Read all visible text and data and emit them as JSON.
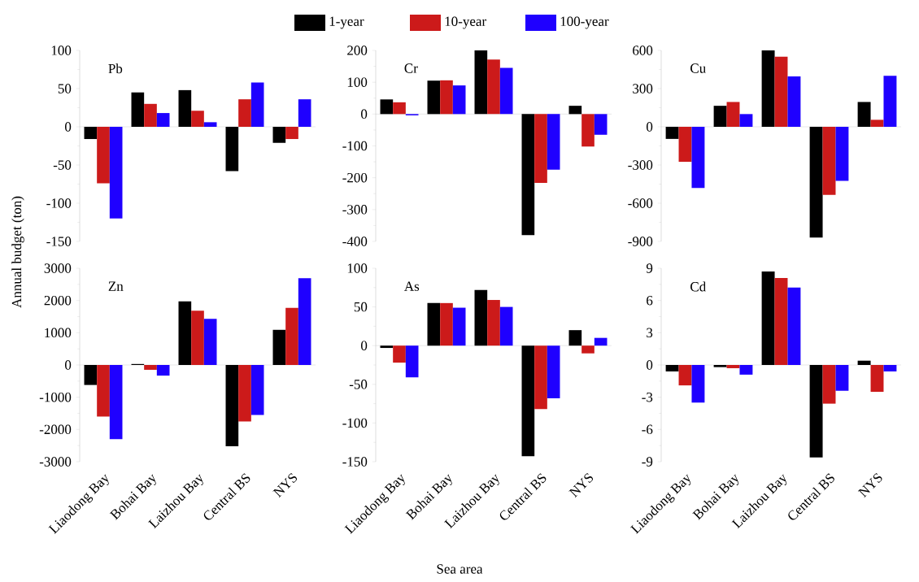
{
  "chart_data": [
    {
      "type": "bar",
      "title": "Pb",
      "categories": [
        null,
        null,
        null,
        null,
        null
      ],
      "legend": "top",
      "tick_labels": "y",
      "series": [
        {
          "name": "1-year",
          "color": "#000000",
          "values": [
            -16,
            45,
            48,
            -58,
            -21
          ]
        },
        {
          "name": "10-year",
          "color": "#cc1a1a",
          "values": [
            -74,
            30,
            21,
            36,
            -16
          ]
        },
        {
          "name": "100-year",
          "color": "#1f00ff",
          "values": [
            -120,
            18,
            6,
            58,
            36
          ]
        }
      ],
      "ylim": [
        -150,
        100
      ],
      "yticks": [
        -150,
        -100,
        -50,
        0,
        50,
        100
      ]
    },
    {
      "type": "bar",
      "title": "Cr",
      "categories": [
        null,
        null,
        null,
        null,
        null
      ],
      "tick_labels": "y",
      "series": [
        {
          "color": "#000000",
          "values": [
            46,
            105,
            200,
            -380,
            26
          ]
        },
        {
          "color": "#cc1a1a",
          "values": [
            37,
            106,
            171,
            -216,
            -102
          ]
        },
        {
          "color": "#1f00ff",
          "values": [
            -4,
            90,
            145,
            -175,
            -65
          ]
        }
      ],
      "ylim": [
        -400,
        200
      ],
      "yticks": [
        -400,
        -300,
        -200,
        -100,
        0,
        100,
        200
      ]
    },
    {
      "type": "bar",
      "title": "Cu",
      "categories": [
        null,
        null,
        null,
        null,
        null
      ],
      "tick_labels": "y",
      "series": [
        {
          "color": "#000000",
          "values": [
            -95,
            165,
            600,
            -870,
            195
          ]
        },
        {
          "color": "#cc1a1a",
          "values": [
            -275,
            195,
            550,
            -535,
            55
          ]
        },
        {
          "color": "#1f00ff",
          "values": [
            -480,
            100,
            395,
            -425,
            400
          ]
        }
      ],
      "ylim": [
        -900,
        600
      ],
      "yticks": [
        -900,
        -600,
        -300,
        0,
        300,
        600
      ]
    },
    {
      "type": "bar",
      "title": "Zn",
      "categories": [
        "Liaodong Bay",
        "Bohai Bay",
        "Laizhou Bay",
        "Central BS",
        "NYS"
      ],
      "ylabel": "Annual budget (ton)",
      "series": [
        {
          "color": "#000000",
          "values": [
            -620,
            30,
            1970,
            -2520,
            1090
          ]
        },
        {
          "color": "#cc1a1a",
          "values": [
            -1600,
            -150,
            1680,
            -1750,
            1770
          ]
        },
        {
          "color": "#1f00ff",
          "values": [
            -2300,
            -330,
            1430,
            -1550,
            2690
          ]
        }
      ],
      "ylim": [
        -3000,
        3000
      ],
      "yticks": [
        -3000,
        -2000,
        -1000,
        0,
        1000,
        2000,
        3000
      ]
    },
    {
      "type": "bar",
      "title": "As",
      "categories": [
        "Liaodong Bay",
        "Bohai Bay",
        "Laizhou Bay",
        "Central BS",
        "NYS"
      ],
      "xlabel": "Sea area",
      "series": [
        {
          "color": "#000000",
          "values": [
            -3,
            55,
            72,
            -143,
            20
          ]
        },
        {
          "color": "#cc1a1a",
          "values": [
            -22,
            55,
            59,
            -82,
            -10
          ]
        },
        {
          "color": "#1f00ff",
          "values": [
            -41,
            49,
            50,
            -68,
            10
          ]
        }
      ],
      "ylim": [
        -150,
        100
      ],
      "yticks": [
        -150,
        -100,
        -50,
        0,
        50,
        100
      ]
    },
    {
      "type": "bar",
      "title": "Cd",
      "categories": [
        "Liaodong Bay",
        "Bohai Bay",
        "Laizhou Bay",
        "Central BS",
        "NYS"
      ],
      "series": [
        {
          "color": "#000000",
          "values": [
            -0.6,
            -0.2,
            8.7,
            -8.6,
            0.4
          ]
        },
        {
          "color": "#cc1a1a",
          "values": [
            -1.9,
            -0.3,
            8.1,
            -3.6,
            -2.5
          ]
        },
        {
          "color": "#1f00ff",
          "values": [
            -3.5,
            -0.9,
            7.2,
            -2.4,
            -0.6
          ]
        }
      ],
      "ylim": [
        -9,
        9
      ],
      "yticks": [
        -9,
        -6,
        -3,
        0,
        3,
        6,
        9
      ]
    }
  ]
}
